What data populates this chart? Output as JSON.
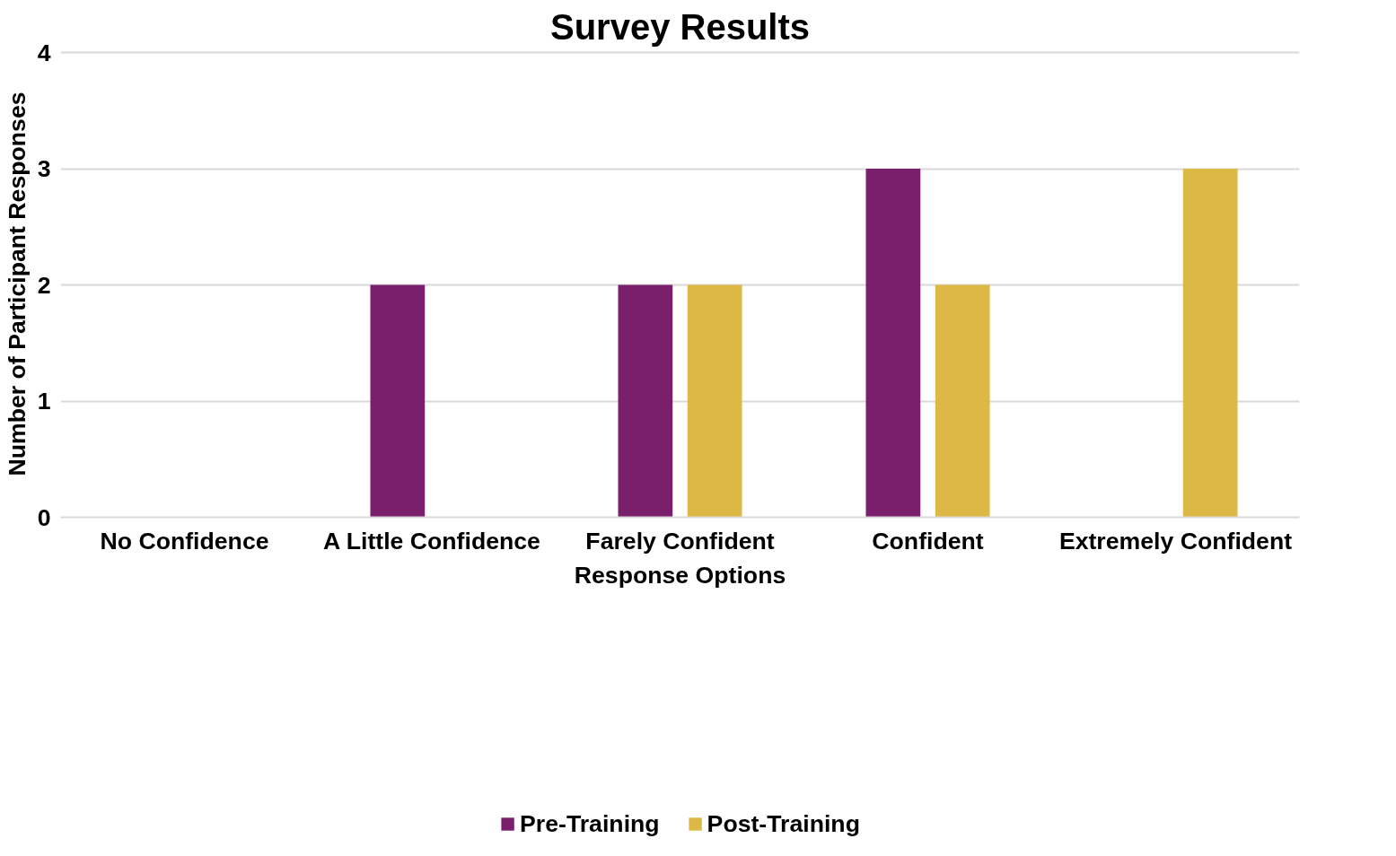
{
  "chart_data": {
    "type": "bar",
    "title": "Survey Results",
    "xlabel": "Response Options",
    "ylabel": "Number of Participant Responses",
    "categories": [
      "No Confidence",
      "A Little Confidence",
      "Farely Confident",
      "Confident",
      "Extremely Confident"
    ],
    "series": [
      {
        "name": "Pre-Training",
        "color": "#7a1f6b",
        "values": [
          0,
          2,
          2,
          3,
          0
        ]
      },
      {
        "name": "Post-Training",
        "color": "#dcb944",
        "values": [
          0,
          0,
          2,
          2,
          3
        ]
      }
    ],
    "ylim": [
      0,
      4
    ],
    "yticks": [
      0,
      1,
      2,
      3,
      4
    ],
    "grid": "y",
    "legend": "bottom"
  }
}
